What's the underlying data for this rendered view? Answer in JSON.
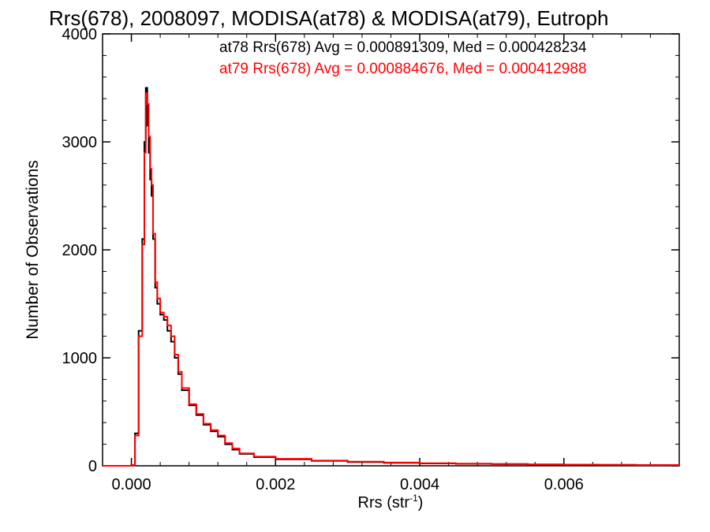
{
  "chart_data": {
    "type": "line",
    "title": "Rrs(678), 2008097, MODISA(at78) & MODISA(at79), Eutroph",
    "xlabel_main": "Rrs (str",
    "xlabel_sup": "-1",
    "xlabel_close": ")",
    "ylabel": "Number of Observations",
    "xlim": [
      -0.0004,
      0.0076
    ],
    "ylim": [
      0,
      4000
    ],
    "x_ticks": [
      0.0,
      0.002,
      0.004,
      0.006
    ],
    "x_tick_labels": [
      "0.000",
      "0.002",
      "0.004",
      "0.006"
    ],
    "y_ticks": [
      0,
      1000,
      2000,
      3000,
      4000
    ],
    "y_tick_labels": [
      "0",
      "1000",
      "2000",
      "3000",
      "4000"
    ],
    "grid": false,
    "annotations": [
      {
        "text": "at78 Rrs(678) Avg = 0.000891309, Med = 0.000428234",
        "color": "#000000"
      },
      {
        "text": "at79 Rrs(678) Avg = 0.000884676, Med = 0.000412988",
        "color": "#ff0000"
      }
    ],
    "series": [
      {
        "name": "at78",
        "color": "#000000",
        "x": [
          -0.0004,
          0.0,
          5e-05,
          0.0001,
          0.00015,
          0.00018,
          0.0002,
          0.00022,
          0.00024,
          0.00026,
          0.00028,
          0.0003,
          0.00033,
          0.00036,
          0.0004,
          0.00045,
          0.0005,
          0.00055,
          0.0006,
          0.00065,
          0.0007,
          0.0008,
          0.0009,
          0.001,
          0.0011,
          0.0012,
          0.0013,
          0.0014,
          0.0015,
          0.0017,
          0.002,
          0.0025,
          0.003,
          0.0035,
          0.004,
          0.0045,
          0.005,
          0.0055,
          0.006,
          0.0065,
          0.007,
          0.0076
        ],
        "y": [
          0,
          5,
          300,
          1250,
          2100,
          3000,
          3500,
          3150,
          2900,
          2650,
          2500,
          2100,
          1650,
          1500,
          1400,
          1350,
          1250,
          1150,
          1000,
          850,
          700,
          560,
          470,
          380,
          320,
          270,
          200,
          150,
          110,
          80,
          60,
          45,
          35,
          28,
          22,
          18,
          15,
          12,
          10,
          8,
          6,
          5
        ]
      },
      {
        "name": "at79",
        "color": "#ff0000",
        "x": [
          -0.0004,
          0.0,
          5e-05,
          0.0001,
          0.00015,
          0.00018,
          0.0002,
          0.00022,
          0.00024,
          0.00026,
          0.00028,
          0.0003,
          0.00033,
          0.00036,
          0.0004,
          0.00045,
          0.0005,
          0.00055,
          0.0006,
          0.00065,
          0.0007,
          0.0008,
          0.0009,
          0.001,
          0.0011,
          0.0012,
          0.0013,
          0.0014,
          0.0015,
          0.0017,
          0.002,
          0.0025,
          0.003,
          0.0035,
          0.004,
          0.0045,
          0.005,
          0.0055,
          0.006,
          0.0065,
          0.007,
          0.0076
        ],
        "y": [
          0,
          5,
          280,
          1200,
          2050,
          2900,
          3450,
          3350,
          3050,
          2750,
          2600,
          2150,
          1700,
          1550,
          1420,
          1380,
          1300,
          1200,
          1030,
          870,
          720,
          570,
          480,
          390,
          330,
          280,
          210,
          160,
          115,
          85,
          65,
          48,
          38,
          30,
          24,
          20,
          16,
          13,
          11,
          9,
          7,
          5
        ]
      }
    ]
  }
}
